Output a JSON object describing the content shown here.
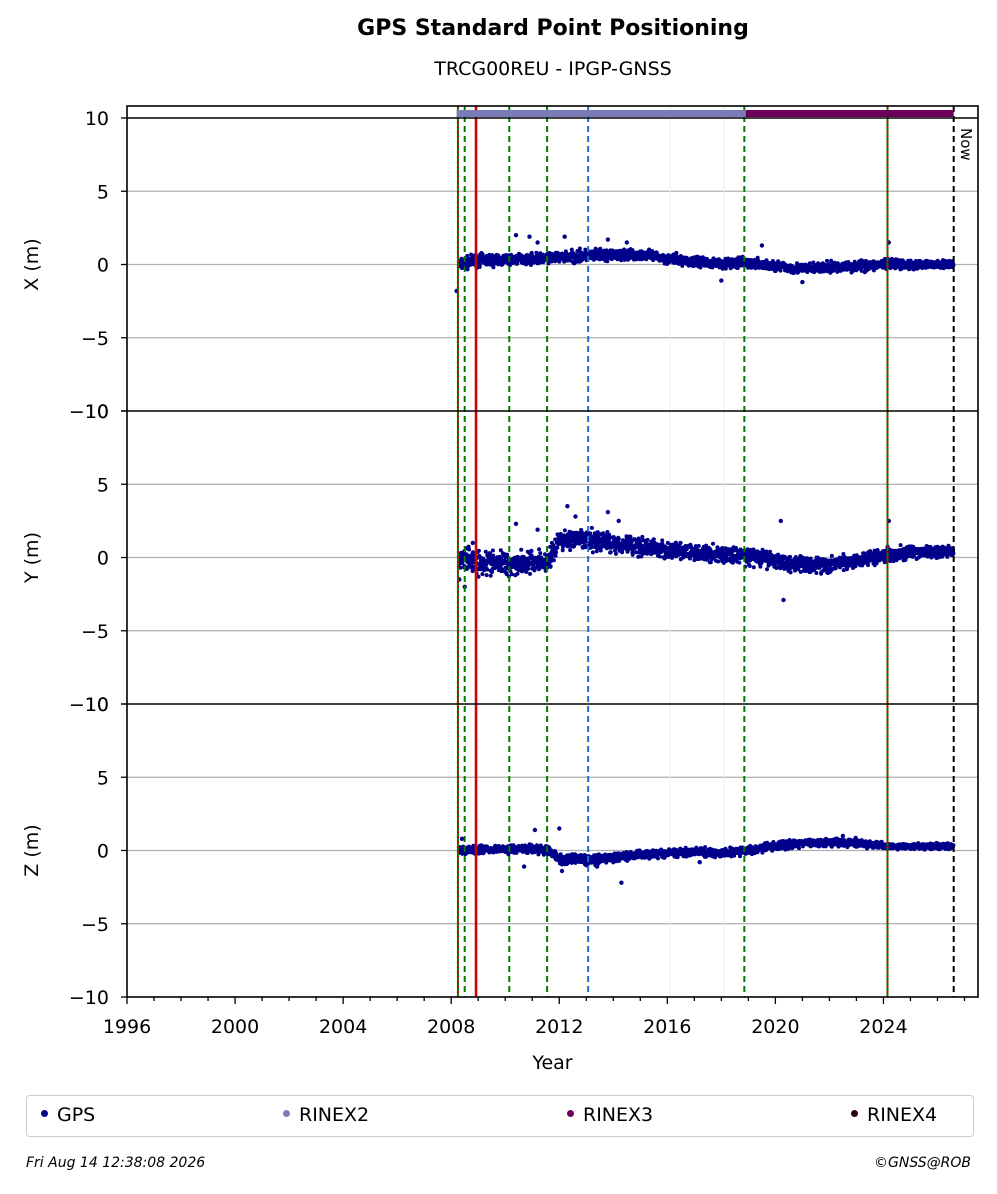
{
  "header": {
    "title": "GPS Standard Point Positioning",
    "subtitle": "TRCG00REU - IPGP-GNSS"
  },
  "chart_data": {
    "type": "scatter",
    "xlabel": "Year",
    "xlim": [
      1996,
      2027.5
    ],
    "x_ticks": [
      "1996",
      "2000",
      "2004",
      "2008",
      "2012",
      "2016",
      "2020",
      "2024"
    ],
    "x_tick_values": [
      1996,
      2000,
      2004,
      2008,
      2012,
      2016,
      2020,
      2024
    ],
    "grid": "horizontal",
    "panels": [
      {
        "ylabel": "X (m)",
        "ylim": [
          -10,
          10
        ],
        "y_ticks": [
          "10",
          "5",
          "0",
          "−5",
          "−10"
        ],
        "y_tick_values": [
          10,
          5,
          0,
          -5,
          -10
        ],
        "series": [
          {
            "name": "GPS",
            "x": [
              2008.3,
              2009.0,
              2010.0,
              2011.0,
              2012.0,
              2013.0,
              2014.0,
              2015.0,
              2016.0,
              2017.0,
              2018.0,
              2019.0,
              2020.0,
              2021.0,
              2022.0,
              2023.0,
              2024.0,
              2025.0,
              2026.0,
              2026.6
            ],
            "y": [
              0.0,
              0.3,
              0.3,
              0.4,
              0.5,
              0.6,
              0.6,
              0.7,
              0.4,
              0.2,
              0.1,
              0.1,
              -0.1,
              -0.3,
              -0.2,
              -0.1,
              0.0,
              0.0,
              0.0,
              0.0
            ],
            "spread": [
              0.6,
              0.6,
              0.5,
              0.5,
              0.6,
              0.6,
              0.5,
              0.5,
              0.5,
              0.5,
              0.5,
              0.5,
              0.5,
              0.5,
              0.5,
              0.5,
              0.5,
              0.4,
              0.4,
              0.4
            ]
          }
        ],
        "outliers": [
          [
            2008.2,
            -1.8
          ],
          [
            2010.4,
            2.0
          ],
          [
            2010.9,
            1.9
          ],
          [
            2011.2,
            1.5
          ],
          [
            2012.2,
            1.9
          ],
          [
            2013.8,
            1.7
          ],
          [
            2014.5,
            1.5
          ],
          [
            2018.0,
            -1.1
          ],
          [
            2019.5,
            1.3
          ],
          [
            2021.0,
            -1.2
          ],
          [
            2024.2,
            1.5
          ]
        ]
      },
      {
        "ylabel": "Y (m)",
        "ylim": [
          -10,
          10
        ],
        "y_ticks": [
          "10",
          "5",
          "0",
          "−5",
          "−10"
        ],
        "y_tick_values": [
          10,
          5,
          0,
          -5,
          -10
        ],
        "series": [
          {
            "name": "GPS",
            "x": [
              2008.3,
              2009.0,
              2010.0,
              2011.0,
              2011.6,
              2012.0,
              2013.0,
              2014.0,
              2015.0,
              2016.0,
              2017.0,
              2018.0,
              2019.0,
              2020.0,
              2021.0,
              2022.0,
              2023.0,
              2024.0,
              2025.0,
              2026.0,
              2026.6
            ],
            "y": [
              0.0,
              -0.3,
              -0.4,
              -0.3,
              -0.3,
              1.2,
              1.2,
              1.0,
              0.8,
              0.5,
              0.3,
              0.2,
              0.1,
              -0.2,
              -0.5,
              -0.5,
              -0.2,
              0.2,
              0.3,
              0.4,
              0.4
            ],
            "spread": [
              1.2,
              1.2,
              1.1,
              1.1,
              1.1,
              1.0,
              1.0,
              1.0,
              0.8,
              0.8,
              0.8,
              0.8,
              0.8,
              0.8,
              0.8,
              0.7,
              0.7,
              0.7,
              0.6,
              0.6,
              0.6
            ]
          }
        ],
        "outliers": [
          [
            2008.3,
            -1.5
          ],
          [
            2008.5,
            -2.0
          ],
          [
            2008.8,
            1.0
          ],
          [
            2010.4,
            2.3
          ],
          [
            2011.2,
            1.9
          ],
          [
            2012.3,
            3.5
          ],
          [
            2012.6,
            2.8
          ],
          [
            2013.8,
            3.1
          ],
          [
            2014.2,
            2.5
          ],
          [
            2020.2,
            2.5
          ],
          [
            2020.3,
            -2.9
          ],
          [
            2024.2,
            2.5
          ]
        ]
      },
      {
        "ylabel": "Z (m)",
        "ylim": [
          -10,
          10
        ],
        "y_ticks": [
          "10",
          "5",
          "0",
          "−5",
          "−10"
        ],
        "y_tick_values": [
          10,
          5,
          0,
          -5,
          -10
        ],
        "series": [
          {
            "name": "GPS",
            "x": [
              2008.3,
              2009.0,
              2010.0,
              2011.0,
              2011.6,
              2012.0,
              2013.0,
              2014.0,
              2015.0,
              2016.0,
              2017.0,
              2018.0,
              2019.0,
              2020.0,
              2021.0,
              2022.0,
              2023.0,
              2024.0,
              2025.0,
              2026.0,
              2026.6
            ],
            "y": [
              0.0,
              0.1,
              0.1,
              0.1,
              0.0,
              -0.6,
              -0.6,
              -0.5,
              -0.3,
              -0.2,
              -0.1,
              -0.2,
              0.0,
              0.3,
              0.5,
              0.6,
              0.5,
              0.3,
              0.3,
              0.3,
              0.3
            ],
            "spread": [
              0.4,
              0.4,
              0.4,
              0.4,
              0.4,
              0.5,
              0.5,
              0.4,
              0.4,
              0.4,
              0.4,
              0.4,
              0.4,
              0.4,
              0.4,
              0.4,
              0.4,
              0.3,
              0.3,
              0.3,
              0.3
            ]
          }
        ],
        "outliers": [
          [
            2008.4,
            0.8
          ],
          [
            2010.7,
            -1.1
          ],
          [
            2011.1,
            1.4
          ],
          [
            2012.0,
            1.5
          ],
          [
            2012.1,
            -1.4
          ],
          [
            2013.4,
            -1.1
          ],
          [
            2014.3,
            -2.2
          ],
          [
            2017.2,
            -0.8
          ],
          [
            2022.5,
            1.0
          ]
        ]
      }
    ],
    "rinex_bars": [
      {
        "name": "RINEX2",
        "start": 2008.2,
        "end": 2018.9,
        "color": "#7b7bb8"
      },
      {
        "name": "RINEX3",
        "start": 2018.9,
        "end": 2026.6,
        "color": "#6a0057"
      }
    ],
    "event_lines": [
      {
        "x": 2008.25,
        "color": "#007a00",
        "style": "solid"
      },
      {
        "x": 2008.25,
        "color": "#d00000",
        "style": "dotted"
      },
      {
        "x": 2008.5,
        "color": "#007a00",
        "style": "dashed"
      },
      {
        "x": 2008.92,
        "color": "#d00000",
        "style": "solid"
      },
      {
        "x": 2010.15,
        "color": "#007a00",
        "style": "dashed"
      },
      {
        "x": 2011.55,
        "color": "#007a00",
        "style": "dashed"
      },
      {
        "x": 2013.07,
        "color": "#1f6fd0",
        "style": "dashed"
      },
      {
        "x": 2018.85,
        "color": "#007a00",
        "style": "dashed"
      },
      {
        "x": 2024.15,
        "color": "#007a00",
        "style": "solid"
      },
      {
        "x": 2024.15,
        "color": "#d00000",
        "style": "dotted"
      },
      {
        "x": 2026.6,
        "color": "#000000",
        "style": "dashed"
      }
    ],
    "now_label": "Now",
    "legend": {
      "position": "bottom",
      "items": [
        {
          "label": "GPS",
          "color": "#00008b"
        },
        {
          "label": "RINEX2",
          "color": "#7b7bb8"
        },
        {
          "label": "RINEX3",
          "color": "#6a0057"
        },
        {
          "label": "RINEX4",
          "color": "#2a0018"
        }
      ]
    },
    "colors": {
      "gps": "#00008b"
    }
  },
  "footer": {
    "date": "Fri Aug 14 12:38:08 2026",
    "credit": "©GNSS@ROB"
  }
}
